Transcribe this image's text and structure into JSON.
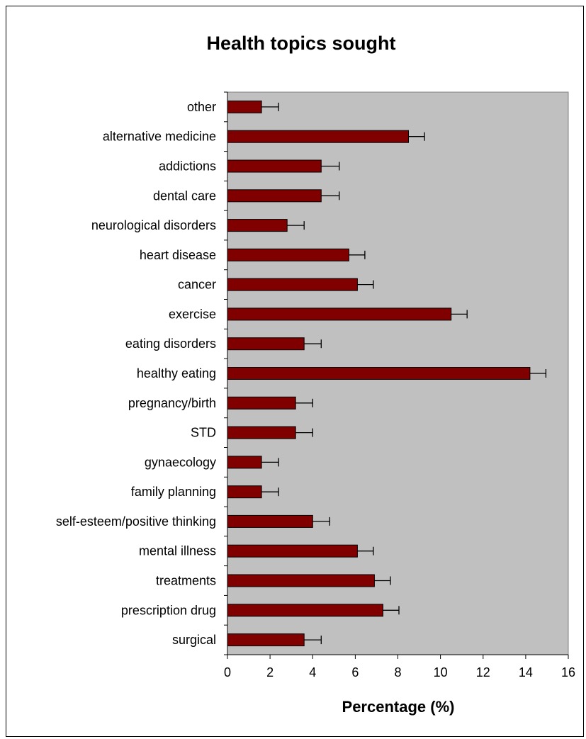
{
  "chart_data": {
    "type": "bar",
    "orientation": "horizontal",
    "title": "Health topics sought",
    "xlabel": "Percentage (%)",
    "ylabel": "",
    "xlim": [
      0,
      16
    ],
    "x_ticks": [
      "0",
      "2",
      "4",
      "6",
      "8",
      "10",
      "12",
      "14",
      "16"
    ],
    "grid": false,
    "legend": "none",
    "plot_background": "#c0c0c0",
    "bar_color": "#800000",
    "categories": [
      "other",
      "alternative medicine",
      "addictions",
      "dental care",
      "neurological disorders",
      "heart disease",
      "cancer",
      "exercise",
      "eating disorders",
      "healthy eating",
      "pregnancy/birth",
      "STD",
      "gynaecology",
      "family planning",
      "self-esteem/positive thinking",
      "mental illness",
      "treatments",
      "prescription drug",
      "surgical"
    ],
    "values": [
      1.6,
      8.5,
      4.4,
      4.4,
      2.8,
      5.7,
      6.1,
      10.5,
      3.6,
      14.2,
      3.2,
      3.2,
      1.6,
      1.6,
      4.0,
      6.1,
      6.9,
      7.3,
      3.6
    ],
    "error": [
      0.8,
      0.75,
      0.85,
      0.85,
      0.8,
      0.75,
      0.75,
      0.75,
      0.8,
      0.75,
      0.8,
      0.8,
      0.8,
      0.8,
      0.8,
      0.75,
      0.75,
      0.75,
      0.8
    ]
  }
}
